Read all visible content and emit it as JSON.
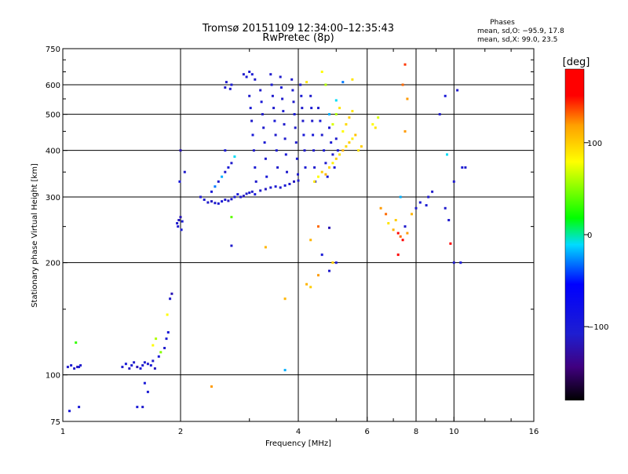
{
  "chart_data": {
    "type": "scatter",
    "title": "Tromsø 20151109 12:34:00–12:35:43",
    "subtitle": "RwPretec (8p)",
    "stats": {
      "heading": "Phases",
      "line1": "mean, sd,O: −95.9, 17.8",
      "line2": "mean, sd,X:  99.0, 23.5"
    },
    "xlabel": "Frequency [MHz]",
    "ylabel": "Stationary phase Virtual Height [km]",
    "x_scale": "log",
    "y_scale": "log",
    "xlim": [
      1,
      16
    ],
    "ylim": [
      75,
      750
    ],
    "x_ticks": [
      {
        "value": 1,
        "label": "1"
      },
      {
        "value": 2,
        "label": "2"
      },
      {
        "value": 4,
        "label": "4"
      },
      {
        "value": 6,
        "label": "6"
      },
      {
        "value": 8,
        "label": "8"
      },
      {
        "value": 10,
        "label": "10"
      },
      {
        "value": 16,
        "label": "16"
      }
    ],
    "y_ticks": [
      {
        "value": 75,
        "label": "75"
      },
      {
        "value": 100,
        "label": "100"
      },
      {
        "value": 200,
        "label": "200"
      },
      {
        "value": 300,
        "label": "300"
      },
      {
        "value": 400,
        "label": "400"
      },
      {
        "value": 500,
        "label": "500"
      },
      {
        "value": 600,
        "label": "600"
      },
      {
        "value": 750,
        "label": "750"
      }
    ],
    "x_gridlines": [
      2,
      4,
      6,
      8,
      10
    ],
    "y_gridlines": [
      100,
      200,
      300,
      400,
      500,
      600
    ],
    "grid": true,
    "colorbar": {
      "unit": "[deg]",
      "range": [
        -180,
        180
      ],
      "ticks": [
        {
          "value": 100,
          "label": "100"
        },
        {
          "value": 0,
          "label": "0"
        },
        {
          "value": -100,
          "label": "−100"
        }
      ],
      "colors": [
        "#000000",
        "#40007f",
        "#1e1ed0",
        "#0000ff",
        "#00dcff",
        "#00ff00",
        "#ffff00",
        "#ffa000",
        "#ff0000",
        "#ff0000"
      ]
    },
    "series_note": "Each point: frequency (MHz), virtual height (km), phase (deg)",
    "points": [
      [
        1.03,
        105,
        -110
      ],
      [
        1.05,
        106,
        -105
      ],
      [
        1.07,
        104,
        -110
      ],
      [
        1.09,
        105,
        -120
      ],
      [
        1.1,
        105,
        -100
      ],
      [
        1.11,
        106,
        -110
      ],
      [
        1.04,
        80,
        -100
      ],
      [
        1.1,
        82,
        -100
      ],
      [
        1.08,
        122,
        30
      ],
      [
        1.42,
        105,
        -110
      ],
      [
        1.45,
        107,
        -100
      ],
      [
        1.48,
        104,
        -115
      ],
      [
        1.5,
        106,
        -105
      ],
      [
        1.52,
        108,
        -110
      ],
      [
        1.55,
        105,
        -120
      ],
      [
        1.58,
        104,
        -100
      ],
      [
        1.6,
        106,
        -110
      ],
      [
        1.62,
        108,
        -105
      ],
      [
        1.65,
        107,
        -110
      ],
      [
        1.68,
        106,
        -100
      ],
      [
        1.7,
        109,
        -110
      ],
      [
        1.72,
        104,
        -115
      ],
      [
        1.55,
        82,
        -100
      ],
      [
        1.6,
        82,
        -110
      ],
      [
        1.62,
        95,
        -100
      ],
      [
        1.65,
        90,
        -105
      ],
      [
        1.7,
        120,
        80
      ],
      [
        1.73,
        125,
        60
      ],
      [
        1.76,
        112,
        -100
      ],
      [
        1.78,
        115,
        50
      ],
      [
        1.82,
        118,
        -110
      ],
      [
        1.84,
        125,
        -105
      ],
      [
        1.86,
        130,
        -100
      ],
      [
        1.88,
        160,
        -110
      ],
      [
        1.9,
        165,
        -120
      ],
      [
        1.85,
        145,
        80
      ],
      [
        1.96,
        255,
        -110
      ],
      [
        1.98,
        260,
        -115
      ],
      [
        2.0,
        265,
        -120
      ],
      [
        2.02,
        258,
        -105
      ],
      [
        1.97,
        250,
        -110
      ],
      [
        2.01,
        245,
        -100
      ],
      [
        1.99,
        330,
        -100
      ],
      [
        2.05,
        350,
        -110
      ],
      [
        2.0,
        400,
        -120
      ],
      [
        2.25,
        300,
        -110
      ],
      [
        2.3,
        295,
        -105
      ],
      [
        2.35,
        290,
        -110
      ],
      [
        2.4,
        292,
        -115
      ],
      [
        2.45,
        289,
        -110
      ],
      [
        2.5,
        288,
        -105
      ],
      [
        2.55,
        292,
        -100
      ],
      [
        2.6,
        295,
        -110
      ],
      [
        2.65,
        293,
        -115
      ],
      [
        2.7,
        296,
        -110
      ],
      [
        2.75,
        300,
        -105
      ],
      [
        2.8,
        305,
        -100
      ],
      [
        2.85,
        300,
        -110
      ],
      [
        2.9,
        302,
        -115
      ],
      [
        2.95,
        306,
        -110
      ],
      [
        3.0,
        308,
        -105
      ],
      [
        3.05,
        310,
        -110
      ],
      [
        3.1,
        305,
        -100
      ],
      [
        3.2,
        312,
        -110
      ],
      [
        3.3,
        315,
        -115
      ],
      [
        3.4,
        318,
        -110
      ],
      [
        3.5,
        320,
        -105
      ],
      [
        3.6,
        318,
        -110
      ],
      [
        3.7,
        322,
        -100
      ],
      [
        3.8,
        325,
        -110
      ],
      [
        3.9,
        330,
        -115
      ],
      [
        4.0,
        332,
        -110
      ],
      [
        2.4,
        310,
        -100
      ],
      [
        2.45,
        320,
        -30
      ],
      [
        2.5,
        330,
        -110
      ],
      [
        2.55,
        340,
        -20
      ],
      [
        2.6,
        350,
        -110
      ],
      [
        2.65,
        360,
        -100
      ],
      [
        2.7,
        370,
        -110
      ],
      [
        2.75,
        385,
        -10
      ],
      [
        2.6,
        400,
        -100
      ],
      [
        2.6,
        590,
        -110
      ],
      [
        2.7,
        600,
        -105
      ],
      [
        2.62,
        610,
        -110
      ],
      [
        2.68,
        585,
        -110
      ],
      [
        2.9,
        640,
        -110
      ],
      [
        2.95,
        630,
        -100
      ],
      [
        3.0,
        650,
        -110
      ],
      [
        3.05,
        640,
        -105
      ],
      [
        3.1,
        620,
        -110
      ],
      [
        3.0,
        560,
        -110
      ],
      [
        3.02,
        520,
        -105
      ],
      [
        3.04,
        480,
        -110
      ],
      [
        3.06,
        440,
        -100
      ],
      [
        3.08,
        400,
        -110
      ],
      [
        3.1,
        360,
        -105
      ],
      [
        3.12,
        330,
        -110
      ],
      [
        3.2,
        580,
        -110
      ],
      [
        3.22,
        540,
        -100
      ],
      [
        3.24,
        500,
        -110
      ],
      [
        3.26,
        460,
        -110
      ],
      [
        3.28,
        420,
        -105
      ],
      [
        3.3,
        380,
        -110
      ],
      [
        3.32,
        340,
        -100
      ],
      [
        3.4,
        640,
        -110
      ],
      [
        3.42,
        600,
        -105
      ],
      [
        3.44,
        560,
        -110
      ],
      [
        3.46,
        520,
        -110
      ],
      [
        3.48,
        480,
        -100
      ],
      [
        3.5,
        440,
        -110
      ],
      [
        3.52,
        400,
        -105
      ],
      [
        3.54,
        360,
        -110
      ],
      [
        3.6,
        630,
        -110
      ],
      [
        3.62,
        590,
        -100
      ],
      [
        3.64,
        550,
        -110
      ],
      [
        3.66,
        510,
        -105
      ],
      [
        3.68,
        470,
        -110
      ],
      [
        3.7,
        430,
        -110
      ],
      [
        3.72,
        390,
        -100
      ],
      [
        3.74,
        350,
        -110
      ],
      [
        3.85,
        620,
        -110
      ],
      [
        3.87,
        580,
        -105
      ],
      [
        3.89,
        540,
        -110
      ],
      [
        3.91,
        500,
        -100
      ],
      [
        3.93,
        460,
        -110
      ],
      [
        3.95,
        420,
        -110
      ],
      [
        3.97,
        380,
        -105
      ],
      [
        3.99,
        345,
        -110
      ],
      [
        4.05,
        600,
        -110
      ],
      [
        4.07,
        560,
        -105
      ],
      [
        4.09,
        520,
        -110
      ],
      [
        4.11,
        480,
        -110
      ],
      [
        4.13,
        440,
        -100
      ],
      [
        4.15,
        400,
        -110
      ],
      [
        4.17,
        360,
        -105
      ],
      [
        4.3,
        560,
        -110
      ],
      [
        4.32,
        520,
        -105
      ],
      [
        4.34,
        480,
        -110
      ],
      [
        4.36,
        440,
        -100
      ],
      [
        4.38,
        400,
        -110
      ],
      [
        4.4,
        360,
        -110
      ],
      [
        4.42,
        330,
        -105
      ],
      [
        4.5,
        520,
        -110
      ],
      [
        4.55,
        480,
        -100
      ],
      [
        4.6,
        440,
        -110
      ],
      [
        4.65,
        400,
        -105
      ],
      [
        4.7,
        370,
        -110
      ],
      [
        4.75,
        340,
        -100
      ],
      [
        4.8,
        460,
        -110
      ],
      [
        4.85,
        420,
        -105
      ],
      [
        4.9,
        390,
        -110
      ],
      [
        4.95,
        360,
        -100
      ],
      [
        5.0,
        430,
        -110
      ],
      [
        5.05,
        400,
        -105
      ],
      [
        4.4,
        330,
        90
      ],
      [
        4.5,
        340,
        80
      ],
      [
        4.6,
        350,
        100
      ],
      [
        4.7,
        345,
        110
      ],
      [
        4.8,
        360,
        95
      ],
      [
        4.9,
        370,
        85
      ],
      [
        5.0,
        380,
        100
      ],
      [
        5.1,
        390,
        90
      ],
      [
        5.2,
        400,
        110
      ],
      [
        5.3,
        410,
        95
      ],
      [
        5.4,
        420,
        100
      ],
      [
        5.5,
        430,
        85
      ],
      [
        5.6,
        440,
        105
      ],
      [
        5.7,
        400,
        90
      ],
      [
        5.8,
        410,
        100
      ],
      [
        5.2,
        450,
        80
      ],
      [
        5.3,
        470,
        95
      ],
      [
        5.4,
        490,
        100
      ],
      [
        5.5,
        510,
        90
      ],
      [
        4.9,
        470,
        70
      ],
      [
        5.0,
        500,
        60
      ],
      [
        5.1,
        520,
        90
      ],
      [
        4.2,
        610,
        90
      ],
      [
        4.6,
        650,
        80
      ],
      [
        4.7,
        600,
        60
      ],
      [
        5.2,
        610,
        -30
      ],
      [
        5.5,
        620,
        90
      ],
      [
        5.0,
        545,
        -10
      ],
      [
        4.8,
        500,
        -20
      ],
      [
        6.2,
        470,
        80
      ],
      [
        6.4,
        490,
        70
      ],
      [
        6.3,
        460,
        90
      ],
      [
        7.5,
        680,
        140
      ],
      [
        7.4,
        600,
        130
      ],
      [
        7.6,
        550,
        120
      ],
      [
        7.5,
        450,
        120
      ],
      [
        4.5,
        250,
        130
      ],
      [
        4.8,
        248,
        -120
      ],
      [
        4.3,
        230,
        110
      ],
      [
        4.6,
        210,
        -100
      ],
      [
        4.8,
        190,
        -110
      ],
      [
        4.9,
        200,
        100
      ],
      [
        4.5,
        185,
        120
      ],
      [
        4.2,
        175,
        110
      ],
      [
        4.3,
        172,
        100
      ],
      [
        5.0,
        200,
        -110
      ],
      [
        3.7,
        160,
        110
      ],
      [
        3.3,
        220,
        110
      ],
      [
        2.7,
        265,
        40
      ],
      [
        2.7,
        222,
        -110
      ],
      [
        3.7,
        103,
        -20
      ],
      [
        2.4,
        93,
        120
      ],
      [
        6.5,
        280,
        120
      ],
      [
        6.7,
        270,
        130
      ],
      [
        6.8,
        255,
        90
      ],
      [
        7.0,
        245,
        110
      ],
      [
        7.1,
        260,
        100
      ],
      [
        7.2,
        240,
        150
      ],
      [
        7.3,
        235,
        130
      ],
      [
        7.5,
        250,
        -110
      ],
      [
        7.6,
        240,
        120
      ],
      [
        7.4,
        230,
        170
      ],
      [
        7.2,
        210,
        180
      ],
      [
        7.8,
        270,
        110
      ],
      [
        8.0,
        280,
        -110
      ],
      [
        8.2,
        290,
        -100
      ],
      [
        8.5,
        285,
        -105
      ],
      [
        8.6,
        300,
        -110
      ],
      [
        8.8,
        310,
        -110
      ],
      [
        7.3,
        300,
        -20
      ],
      [
        9.2,
        500,
        -110
      ],
      [
        9.5,
        560,
        -100
      ],
      [
        10.2,
        580,
        -110
      ],
      [
        9.6,
        390,
        -10
      ],
      [
        10.0,
        330,
        -110
      ],
      [
        10.5,
        360,
        -105
      ],
      [
        10.7,
        360,
        -110
      ],
      [
        9.5,
        280,
        -110
      ],
      [
        9.7,
        260,
        -110
      ],
      [
        9.8,
        225,
        180
      ],
      [
        10.0,
        200,
        -110
      ],
      [
        10.4,
        200,
        -100
      ]
    ]
  }
}
